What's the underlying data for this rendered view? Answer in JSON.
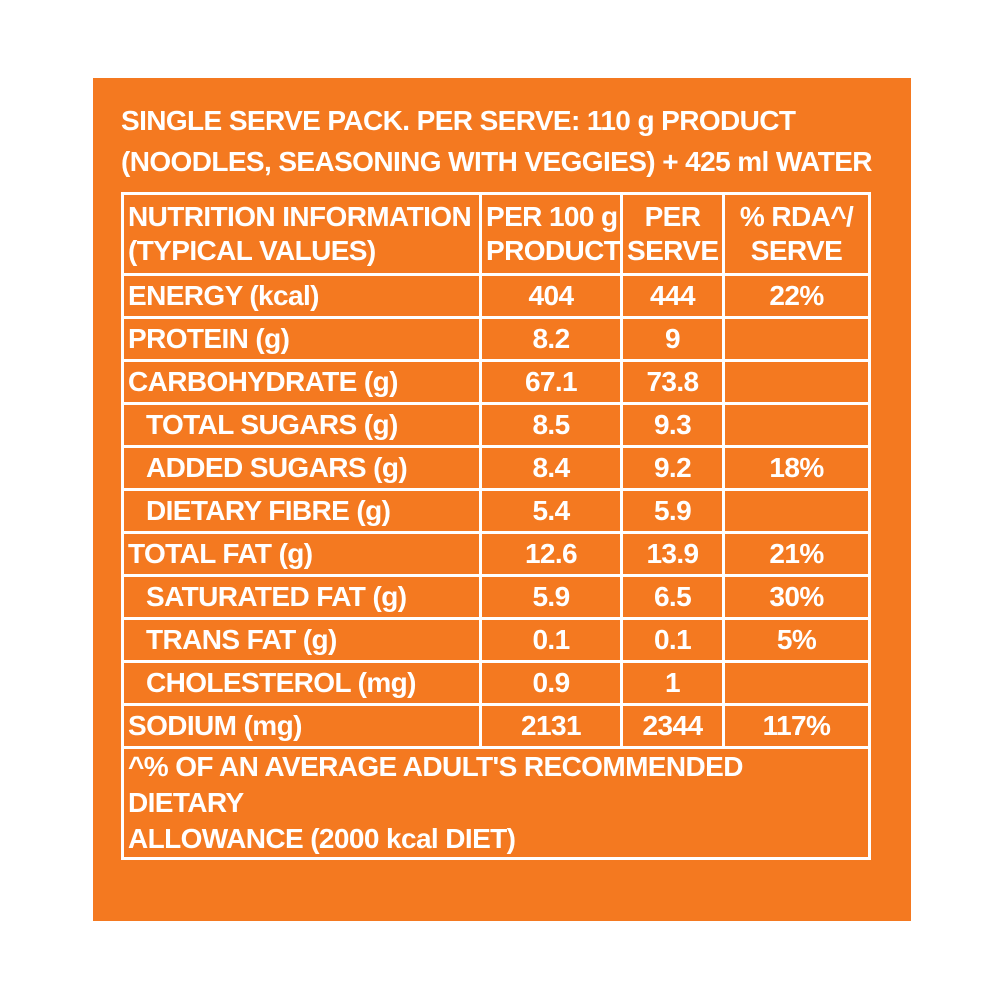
{
  "header": {
    "line1": "SINGLE SERVE PACK. PER SERVE: 110 g PRODUCT",
    "line2": "(NOODLES, SEASONING WITH VEGGIES) + 425 ml WATER"
  },
  "table": {
    "columns": [
      {
        "line1": "NUTRITION INFORMATION",
        "line2": "(TYPICAL VALUES)"
      },
      {
        "line1": "PER 100 g",
        "line2": "PRODUCT"
      },
      {
        "line1": "PER",
        "line2": "SERVE"
      },
      {
        "line1": "% RDA^/",
        "line2": "SERVE"
      }
    ],
    "rows": [
      {
        "name": "ENERGY (kcal)",
        "per100": "404",
        "serve": "444",
        "rda": "22%",
        "indent": false
      },
      {
        "name": "PROTEIN (g)",
        "per100": "8.2",
        "serve": "9",
        "rda": "",
        "indent": false
      },
      {
        "name": "CARBOHYDRATE (g)",
        "per100": "67.1",
        "serve": "73.8",
        "rda": "",
        "indent": false
      },
      {
        "name": "TOTAL SUGARS (g)",
        "per100": "8.5",
        "serve": "9.3",
        "rda": "",
        "indent": true
      },
      {
        "name": "ADDED SUGARS (g)",
        "per100": "8.4",
        "serve": "9.2",
        "rda": "18%",
        "indent": true
      },
      {
        "name": "DIETARY FIBRE (g)",
        "per100": "5.4",
        "serve": "5.9",
        "rda": "",
        "indent": true
      },
      {
        "name": "TOTAL FAT (g)",
        "per100": "12.6",
        "serve": "13.9",
        "rda": "21%",
        "indent": false
      },
      {
        "name": "SATURATED FAT (g)",
        "per100": "5.9",
        "serve": "6.5",
        "rda": "30%",
        "indent": true
      },
      {
        "name": "TRANS FAT (g)",
        "per100": "0.1",
        "serve": "0.1",
        "rda": "5%",
        "indent": true
      },
      {
        "name": "CHOLESTEROL (mg)",
        "per100": "0.9",
        "serve": "1",
        "rda": "",
        "indent": true
      },
      {
        "name": "SODIUM (mg)",
        "per100": "2131",
        "serve": "2344",
        "rda": "117%",
        "indent": false
      }
    ],
    "footnote": {
      "line1": "^% OF AN AVERAGE ADULT'S RECOMMENDED DIETARY",
      "line2": "ALLOWANCE (2000 kcal DIET)"
    }
  },
  "colors": {
    "panel": "#f47920",
    "text": "#ffffff",
    "background": "#ffffff"
  }
}
